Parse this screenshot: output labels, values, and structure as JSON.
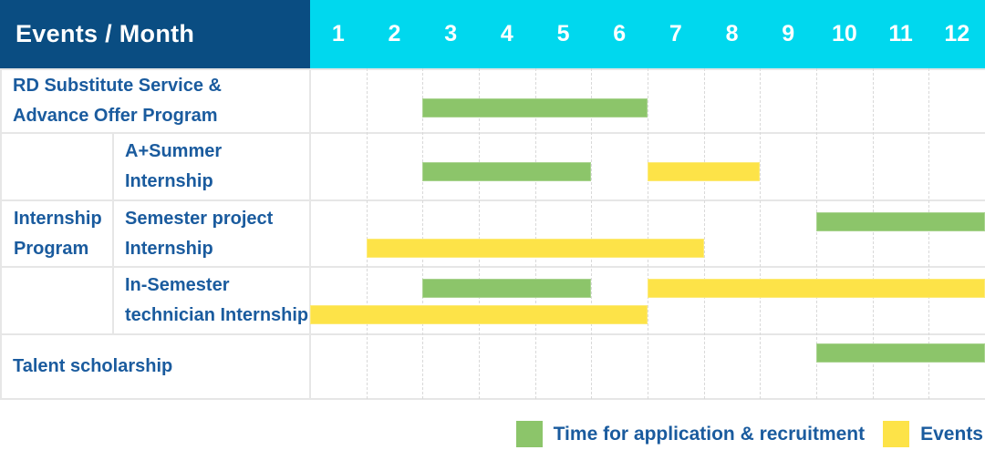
{
  "header": {
    "label": "Events / Month"
  },
  "colors": {
    "navy": "#0a4d82",
    "cyan": "#00d8ee",
    "green": "#8cc56a",
    "yellow": "#fde348",
    "label_blue": "#1a5b9e"
  },
  "legend": {
    "items": [
      {
        "label": "Time for application & recruitment",
        "color_key": "green"
      },
      {
        "label": "Events",
        "color_key": "yellow"
      }
    ]
  },
  "chart_data": {
    "type": "gantt",
    "x_unit": "month",
    "x_range": [
      1,
      12
    ],
    "months": [
      "1",
      "2",
      "3",
      "4",
      "5",
      "6",
      "7",
      "8",
      "9",
      "10",
      "11",
      "12"
    ],
    "bar_types": {
      "application": {
        "legend": "Time for application & recruitment",
        "color": "#8cc56a"
      },
      "event": {
        "legend": "Events",
        "color": "#fde348"
      }
    },
    "row_group": {
      "label": "Internship Program",
      "lines": [
        "Internship",
        "Program"
      ],
      "member_rows": [
        "A+Summer Internship",
        "Semester project Internship",
        "In-Semester technician Internship"
      ]
    },
    "rows": [
      {
        "label": "RD Substitute Service & Advance Offer Program",
        "lines": [
          "RD Substitute Service &",
          "Advance Offer Program"
        ],
        "group": null,
        "bars": [
          {
            "type": "application",
            "start_month": 3,
            "end_month": 6
          }
        ]
      },
      {
        "label": "A+Summer Internship",
        "lines": [
          "A+Summer",
          "Internship"
        ],
        "group": "Internship Program",
        "bars": [
          {
            "type": "application",
            "start_month": 3,
            "end_month": 5
          },
          {
            "type": "event",
            "start_month": 7,
            "end_month": 8
          }
        ]
      },
      {
        "label": "Semester project Internship",
        "lines": [
          "Semester project",
          "Internship"
        ],
        "group": "Internship Program",
        "bars": [
          {
            "type": "application",
            "start_month": 10,
            "end_month": 12,
            "level": "upper"
          },
          {
            "type": "event",
            "start_month": 2,
            "end_month": 7,
            "level": "lower"
          }
        ]
      },
      {
        "label": "In-Semester technician Internship",
        "lines": [
          "In-Semester",
          "technician Internship"
        ],
        "group": "Internship Program",
        "bars": [
          {
            "type": "application",
            "start_month": 3,
            "end_month": 5,
            "level": "upper"
          },
          {
            "type": "event",
            "start_month": 7,
            "end_month": 12,
            "level": "upper"
          },
          {
            "type": "event",
            "start_month": 1,
            "end_month": 6,
            "level": "lower"
          }
        ]
      },
      {
        "label": "Talent scholarship",
        "lines": [
          "Talent scholarship"
        ],
        "group": null,
        "bars": [
          {
            "type": "application",
            "start_month": 10,
            "end_month": 12
          }
        ]
      }
    ]
  }
}
